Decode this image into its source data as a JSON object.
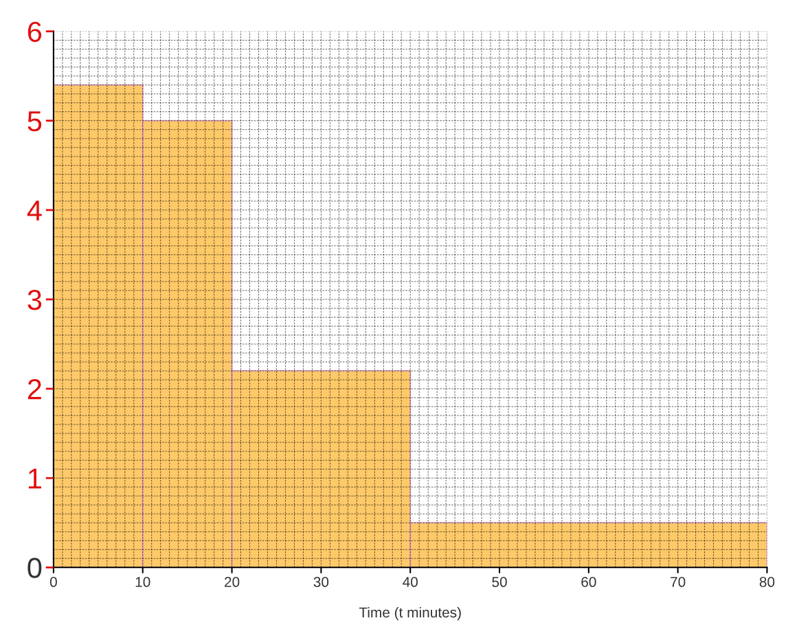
{
  "chart_data": {
    "type": "histogram",
    "xlabel": "Time (t minutes)",
    "bins": [
      0,
      10,
      20,
      40,
      80
    ],
    "values": [
      5.4,
      5.0,
      2.2,
      0.5
    ],
    "color": "#fec459",
    "xlim": [
      0,
      80
    ],
    "xticks": [
      0,
      10,
      20,
      30,
      40,
      50,
      60,
      70,
      80
    ],
    "ylim": [
      0,
      6
    ],
    "yticks": [
      0,
      1,
      2,
      3,
      4,
      5,
      6
    ],
    "grid": true
  }
}
